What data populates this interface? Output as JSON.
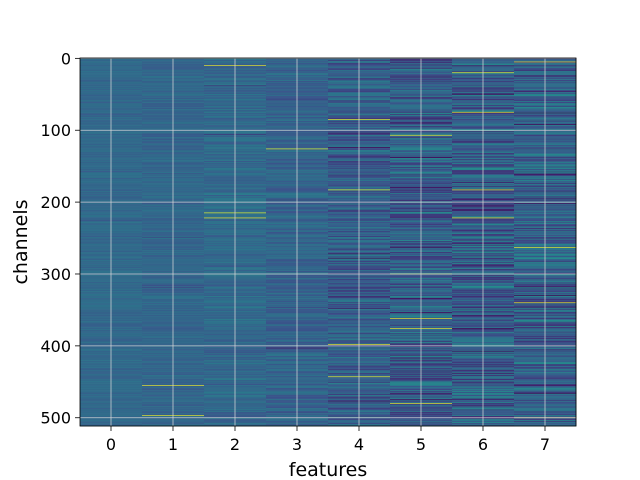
{
  "chart_data": {
    "type": "heatmap",
    "title": "",
    "xlabel": "features",
    "ylabel": "channels",
    "x_categories": [
      "0",
      "1",
      "2",
      "3",
      "4",
      "5",
      "6",
      "7"
    ],
    "y_ticks": [
      0,
      100,
      200,
      300,
      400,
      500
    ],
    "y_range": [
      0,
      511
    ],
    "y_inverted": true,
    "n_channels": 512,
    "grid": true,
    "colormap": "viridis",
    "colormap_stops": [
      "#440154",
      "#3b528b",
      "#21918c",
      "#5ec962",
      "#fde725"
    ],
    "column_stats": [
      {
        "feature": "0",
        "mean": 0.34,
        "spread": 0.04,
        "bright_channels": []
      },
      {
        "feature": "1",
        "mean": 0.33,
        "spread": 0.05,
        "bright_channels": [
          455,
          497
        ]
      },
      {
        "feature": "2",
        "mean": 0.34,
        "spread": 0.07,
        "bright_channels": [
          10,
          215,
          222
        ]
      },
      {
        "feature": "3",
        "mean": 0.32,
        "spread": 0.08,
        "bright_channels": [
          126
        ]
      },
      {
        "feature": "4",
        "mean": 0.3,
        "spread": 0.13,
        "bright_channels": [
          85,
          183,
          398,
          443
        ]
      },
      {
        "feature": "5",
        "mean": 0.3,
        "spread": 0.16,
        "bright_channels": [
          107,
          300,
          362,
          376,
          480
        ]
      },
      {
        "feature": "6",
        "mean": 0.3,
        "spread": 0.18,
        "bright_channels": [
          20,
          75,
          183,
          222
        ]
      },
      {
        "feature": "7",
        "mean": 0.31,
        "spread": 0.17,
        "bright_channels": [
          5,
          263,
          340,
          500
        ]
      }
    ]
  }
}
